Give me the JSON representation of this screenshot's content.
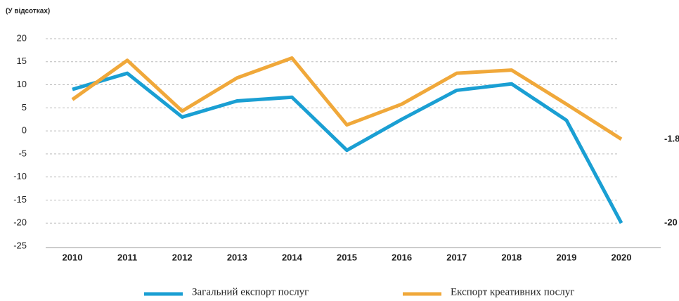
{
  "chart_data": {
    "type": "line",
    "subtitle": "(У відсотках)",
    "categories": [
      "2010",
      "2011",
      "2012",
      "2013",
      "2014",
      "2015",
      "2016",
      "2017",
      "2018",
      "2019",
      "2020"
    ],
    "series": [
      {
        "name": "Загальний експорт послуг",
        "color": "#1a9fd3",
        "values": [
          9,
          12.5,
          3,
          6.5,
          7.3,
          -4.2,
          2.5,
          8.8,
          10.2,
          2.3,
          -20
        ]
      },
      {
        "name": "Експорт креативних послуг",
        "color": "#f0a83a",
        "values": [
          6.8,
          15.3,
          4.3,
          11.5,
          15.8,
          1.3,
          5.8,
          12.5,
          13.2,
          5.8,
          -1.8
        ]
      }
    ],
    "ylim": [
      -25,
      20
    ],
    "yticks": [
      20,
      15,
      10,
      5,
      0,
      -5,
      -10,
      -15,
      -20,
      -25
    ],
    "grid": true,
    "legend": "bottom"
  }
}
